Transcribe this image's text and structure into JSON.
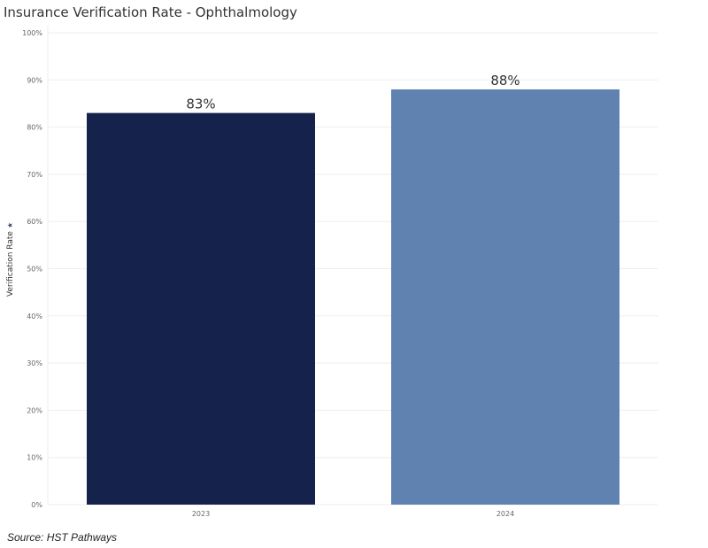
{
  "chart_data": {
    "type": "bar",
    "title": "Insurance Verification Rate - Ophthalmology",
    "ylabel": "Verification Rate",
    "xlabel": "",
    "categories": [
      "2023",
      "2024"
    ],
    "values": [
      83,
      88
    ],
    "data_labels": [
      "83%",
      "88%"
    ],
    "colors": [
      "#15224b",
      "#6082b0"
    ],
    "ylim": [
      0,
      100
    ],
    "yticks": [
      0,
      10,
      20,
      30,
      40,
      50,
      60,
      70,
      80,
      90,
      100
    ],
    "ytick_labels": [
      "0%",
      "10%",
      "20%",
      "30%",
      "40%",
      "50%",
      "60%",
      "70%",
      "80%",
      "90%",
      "100%"
    ],
    "grid": true,
    "legend": "none"
  },
  "axis_icon": "sort-icon",
  "source_note": "Source: HST Pathways"
}
